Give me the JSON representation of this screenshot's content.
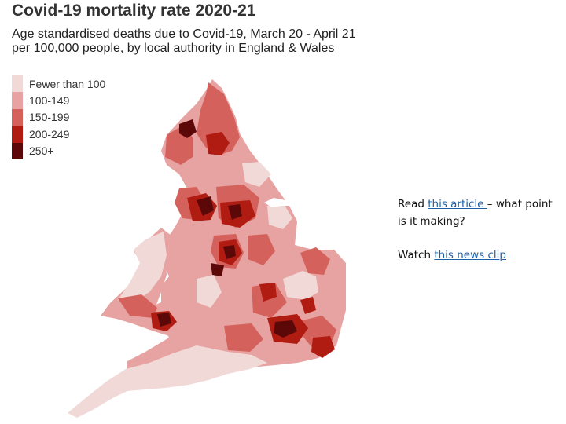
{
  "title": "Covid-19 mortality rate 2020-21",
  "subtitle_line1": "Age standardised deaths due to Covid-19, March 20 - April 21",
  "subtitle_line2": "per 100,000 people, by local authority in England & Wales",
  "legend": [
    {
      "label": "Fewer than 100",
      "color": "#f1d9d8"
    },
    {
      "label": "100-149",
      "color": "#e6a3a1"
    },
    {
      "label": "150-199",
      "color": "#d5615c"
    },
    {
      "label": "200-249",
      "color": "#b01c12"
    },
    {
      "label": "250+",
      "color": "#5c0808"
    }
  ],
  "note": {
    "read_prefix": "Read ",
    "article_link": "this article ",
    "read_suffix": "– what point is it making?",
    "watch_prefix": "Watch ",
    "clip_link": "this news clip"
  }
}
